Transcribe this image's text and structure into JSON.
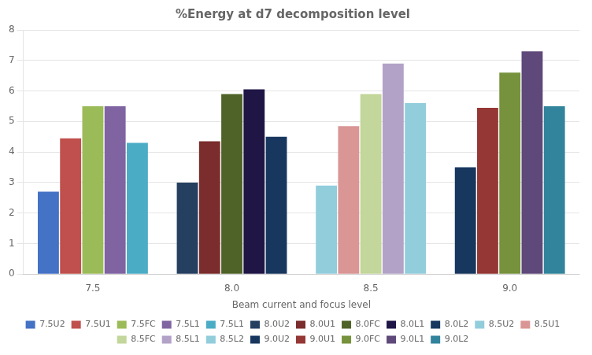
{
  "chart_data": {
    "type": "bar",
    "title": "%Energy at d7 decomposition level",
    "xlabel": "Beam current and focus level",
    "categories": [
      "7.5",
      "8.0",
      "8.5",
      "9.0"
    ],
    "series": [
      {
        "name": "7.5U2",
        "color": "#4472C4",
        "values": [
          2.7,
          null,
          null,
          null
        ]
      },
      {
        "name": "7.5U1",
        "color": "#C0504D",
        "values": [
          4.45,
          null,
          null,
          null
        ]
      },
      {
        "name": "7.5FC",
        "color": "#9BBB59",
        "values": [
          5.5,
          null,
          null,
          null
        ]
      },
      {
        "name": "7.5L1",
        "color": "#8064A2",
        "values": [
          5.5,
          null,
          null,
          null
        ]
      },
      {
        "name": "7.5L1",
        "color": "#4BACC6",
        "values": [
          4.3,
          null,
          null,
          null
        ]
      },
      {
        "name": "8.0U2",
        "color": "#243F60",
        "values": [
          null,
          3.0,
          null,
          null
        ]
      },
      {
        "name": "8.0U1",
        "color": "#7B2C2C",
        "values": [
          null,
          4.35,
          null,
          null
        ]
      },
      {
        "name": "8.0FC",
        "color": "#4F6228",
        "values": [
          null,
          5.9,
          null,
          null
        ]
      },
      {
        "name": "8.0L1",
        "color": "#1F1646",
        "values": [
          null,
          6.05,
          null,
          null
        ]
      },
      {
        "name": "8.0L2",
        "color": "#17375E",
        "values": [
          null,
          4.5,
          null,
          null
        ]
      },
      {
        "name": "8.5U2",
        "color": "#92CDDC",
        "values": [
          null,
          null,
          2.9,
          null
        ]
      },
      {
        "name": "8.5U1",
        "color": "#D99694",
        "values": [
          null,
          null,
          4.85,
          null
        ]
      },
      {
        "name": "8.5FC",
        "color": "#C3D69B",
        "values": [
          null,
          null,
          5.9,
          null
        ]
      },
      {
        "name": "8.5L1",
        "color": "#B3A2C7",
        "values": [
          null,
          null,
          6.9,
          null
        ]
      },
      {
        "name": "8.5L2",
        "color": "#92CDDC",
        "values": [
          null,
          null,
          5.6,
          null
        ]
      },
      {
        "name": "9.0U2",
        "color": "#17375E",
        "values": [
          null,
          null,
          null,
          3.5
        ]
      },
      {
        "name": "9.0U1",
        "color": "#953735",
        "values": [
          null,
          null,
          null,
          5.45
        ]
      },
      {
        "name": "9.0FC",
        "color": "#76923C",
        "values": [
          null,
          null,
          null,
          6.6
        ]
      },
      {
        "name": "9.0L1",
        "color": "#5F497A",
        "values": [
          null,
          null,
          null,
          7.3
        ]
      },
      {
        "name": "9.0L2",
        "color": "#31849B",
        "values": [
          null,
          null,
          null,
          5.5
        ]
      }
    ],
    "ylim": [
      0,
      8
    ],
    "yticks": [
      0,
      1,
      2,
      3,
      4,
      5,
      6,
      7,
      8
    ],
    "grid": true,
    "legend": "bottom"
  }
}
